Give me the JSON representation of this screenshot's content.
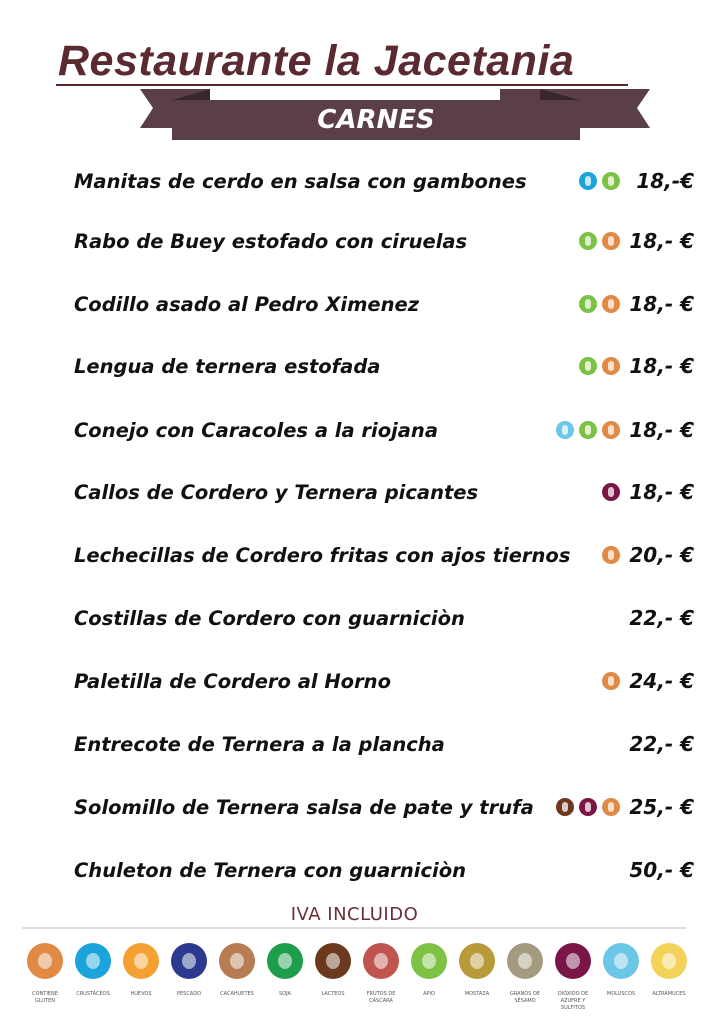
{
  "header": {
    "title": "Restaurante la Jacetania",
    "section": "CARNES"
  },
  "colors": {
    "brand": "#5a2a31",
    "ribbon": "#5b3f48",
    "ribbon_dark": "#3a262d"
  },
  "allergen_colors": {
    "gluten": "#e08a45",
    "crustaceos": "#1ba3dc",
    "huevos": "#f5a131",
    "pescado": "#2b3a8f",
    "cacahuetes": "#b87c52",
    "soja": "#1e9e4a",
    "lacteos": "#6b3a1e",
    "frutos": "#c0544f",
    "apio": "#7dc242",
    "mostaza": "#b89a3a",
    "sesamo": "#a39a7f",
    "sulfitos": "#7a1548",
    "moluscos": "#6cc6e6",
    "altramuces": "#f3d25a"
  },
  "items": [
    {
      "name": "Manitas de cerdo en salsa con gambones",
      "price": "18,-€",
      "allergens": [
        "crustaceos",
        "apio"
      ]
    },
    {
      "name": "Rabo de Buey estofado con ciruelas",
      "price": "18,- €",
      "allergens": [
        "apio",
        "gluten"
      ]
    },
    {
      "name": "Codillo asado al Pedro Ximenez",
      "price": "18,- €",
      "allergens": [
        "apio",
        "gluten"
      ]
    },
    {
      "name": "Lengua de ternera estofada",
      "price": "18,- €",
      "allergens": [
        "apio",
        "gluten"
      ]
    },
    {
      "name": "Conejo con Caracoles a la riojana",
      "price": "18,- €",
      "allergens": [
        "moluscos",
        "apio",
        "gluten"
      ]
    },
    {
      "name": "Callos de Cordero y Ternera picantes",
      "price": "18,- €",
      "allergens": [
        "sulfitos"
      ]
    },
    {
      "name": "Lechecillas de Cordero fritas con ajos tiernos",
      "price": "20,- €",
      "allergens": [
        "gluten"
      ]
    },
    {
      "name": "Costillas de Cordero con guarniciòn",
      "price": "22,- €",
      "allergens": []
    },
    {
      "name": "Paletilla de Cordero al Horno",
      "price": "24,- €",
      "allergens": [
        "gluten"
      ]
    },
    {
      "name": "Entrecote de Ternera a la plancha",
      "price": "22,- €",
      "allergens": []
    },
    {
      "name": "Solomillo de Ternera salsa de pate y trufa",
      "price": "25,- €",
      "allergens": [
        "lacteos",
        "sulfitos",
        "gluten"
      ]
    },
    {
      "name": "Chuleton de Ternera con guarniciòn",
      "price": "50,- €",
      "allergens": []
    }
  ],
  "footer": {
    "note": "IVA INCLUIDO"
  },
  "legend": [
    {
      "key": "gluten",
      "label": "CONTIENE GLUTEN"
    },
    {
      "key": "crustaceos",
      "label": "CRUSTÁCEOS"
    },
    {
      "key": "huevos",
      "label": "HUEVOS"
    },
    {
      "key": "pescado",
      "label": "PESCADO"
    },
    {
      "key": "cacahuetes",
      "label": "CACAHUETES"
    },
    {
      "key": "soja",
      "label": "SOJA"
    },
    {
      "key": "lacteos",
      "label": "LACTEOS"
    },
    {
      "key": "frutos",
      "label": "FRUTOS DE CÁSCARA"
    },
    {
      "key": "apio",
      "label": "APIO"
    },
    {
      "key": "mostaza",
      "label": "MOSTAZA"
    },
    {
      "key": "sesamo",
      "label": "GRANOS DE SÉSAMO"
    },
    {
      "key": "sulfitos",
      "label": "DIÓXIDO DE AZUFRE Y SULFITOS"
    },
    {
      "key": "moluscos",
      "label": "MOLUSCOS"
    },
    {
      "key": "altramuces",
      "label": "ALTRAMUCES"
    }
  ]
}
